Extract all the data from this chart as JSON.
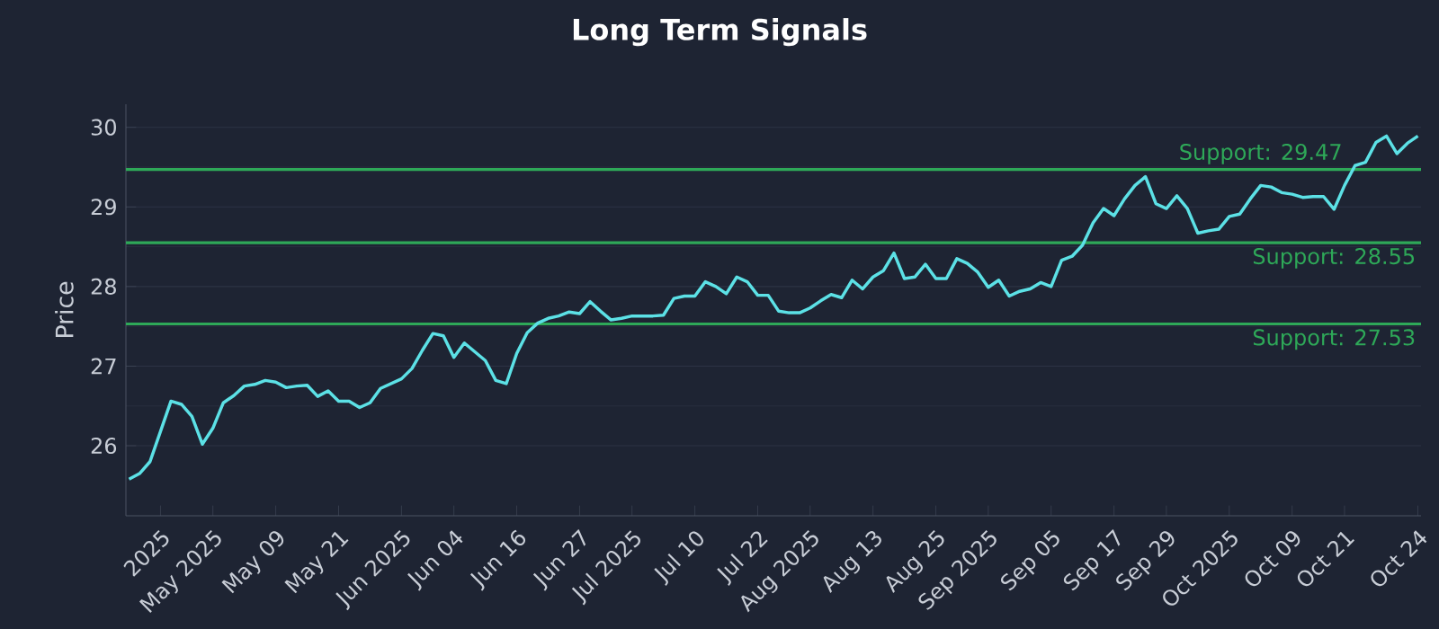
{
  "chart_data": {
    "type": "line",
    "title": "Long Term Signals",
    "ylabel": "Price",
    "categories": [
      null,
      null,
      null,
      "2025",
      null,
      null,
      null,
      null,
      "May 2025",
      null,
      null,
      null,
      null,
      null,
      "May 09",
      null,
      null,
      null,
      null,
      null,
      "May 21",
      null,
      null,
      null,
      null,
      null,
      "Jun 2025",
      null,
      null,
      null,
      null,
      "Jun 04",
      null,
      null,
      null,
      null,
      null,
      "Jun 16",
      null,
      null,
      null,
      null,
      null,
      "Jun 27",
      null,
      null,
      null,
      null,
      "Jul 2025",
      null,
      null,
      null,
      null,
      null,
      "Jul 10",
      null,
      null,
      null,
      null,
      null,
      "Jul 22",
      null,
      null,
      null,
      null,
      "Aug 2025",
      null,
      null,
      null,
      null,
      null,
      "Aug 13",
      null,
      null,
      null,
      null,
      null,
      "Aug 25",
      null,
      null,
      null,
      null,
      "Sep 2025",
      null,
      null,
      null,
      null,
      null,
      "Sep 05",
      null,
      null,
      null,
      null,
      null,
      "Sep 17",
      null,
      null,
      null,
      null,
      "Sep 29",
      null,
      null,
      null,
      null,
      null,
      "Oct 2025",
      null,
      null,
      null,
      null,
      null,
      "Oct 09",
      null,
      null,
      null,
      null,
      "Oct 21",
      null,
      null,
      null,
      null,
      null,
      null,
      "Oct 24"
    ],
    "series": [
      {
        "color": "#5ce1e6",
        "values": [
          25.58,
          25.65,
          25.8,
          26.18,
          26.56,
          26.52,
          26.37,
          26.02,
          26.22,
          26.54,
          26.63,
          26.75,
          26.77,
          26.82,
          26.8,
          26.73,
          26.75,
          26.76,
          26.62,
          26.69,
          26.56,
          26.56,
          26.48,
          26.54,
          26.72,
          26.78,
          26.84,
          26.97,
          27.2,
          27.41,
          27.38,
          27.11,
          27.29,
          27.18,
          27.07,
          26.82,
          26.78,
          27.16,
          27.42,
          27.54,
          27.6,
          27.63,
          27.68,
          27.66,
          27.81,
          27.69,
          27.58,
          27.6,
          27.63,
          27.63,
          27.63,
          27.64,
          27.85,
          27.88,
          27.88,
          28.06,
          28.0,
          27.91,
          28.12,
          28.06,
          27.89,
          27.89,
          27.69,
          27.67,
          27.67,
          27.73,
          27.82,
          27.9,
          27.86,
          28.08,
          27.97,
          28.12,
          28.2,
          28.42,
          28.1,
          28.12,
          28.28,
          28.1,
          28.1,
          28.35,
          28.29,
          28.18,
          27.99,
          28.08,
          27.88,
          27.94,
          27.97,
          28.05,
          28.0,
          28.33,
          28.38,
          28.52,
          28.8,
          28.98,
          28.89,
          29.1,
          29.27,
          29.38,
          29.04,
          28.98,
          29.14,
          28.98,
          28.67,
          28.7,
          28.72,
          28.88,
          28.91,
          29.1,
          29.27,
          29.25,
          29.18,
          29.16,
          29.12,
          29.13,
          29.13,
          28.97,
          29.27,
          29.52,
          29.56,
          29.81,
          29.89,
          29.67,
          29.8,
          29.89
        ]
      }
    ],
    "ylim": [
      25.12,
      30.29
    ],
    "yticks": [
      26,
      27,
      28,
      29,
      30
    ],
    "grid": "y",
    "ref_lines": [
      {
        "axis": "y",
        "value": 29.47,
        "label": "Support: 29.47",
        "color": "#2ea858"
      },
      {
        "axis": "y",
        "value": 28.55,
        "label": "Support: 28.55",
        "color": "#2ea858"
      },
      {
        "axis": "y",
        "value": 27.53,
        "label": "Support: 27.53",
        "color": "#2ea858"
      }
    ]
  }
}
